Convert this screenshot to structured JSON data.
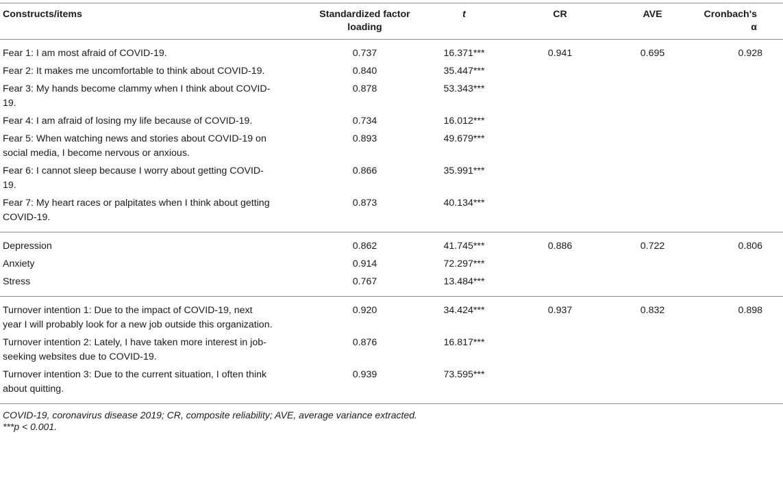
{
  "headers": {
    "constructs": "Constructs/items",
    "loading": "Standardized factor loading",
    "t": "t",
    "cr": "CR",
    "ave": "AVE",
    "alpha": "Cronbach's α"
  },
  "groups": [
    {
      "cr": "0.941",
      "ave": "0.695",
      "alpha": "0.928",
      "rows": [
        {
          "item": "Fear 1: I am most afraid of COVID-19.",
          "loading": "0.737",
          "t": "16.371***"
        },
        {
          "item": "Fear 2: It makes me uncomfortable to think about COVID-19.",
          "loading": "0.840",
          "t": "35.447***"
        },
        {
          "item": "Fear 3: My hands become clammy when I think about COVID-19.",
          "loading": "0.878",
          "t": "53.343***"
        },
        {
          "item": "Fear 4: I am afraid of losing my life because of COVID-19.",
          "loading": "0.734",
          "t": "16.012***"
        },
        {
          "item": "Fear 5: When watching news and stories about COVID-19 on social media, I become nervous or anxious.",
          "loading": "0.893",
          "t": "49.679***"
        },
        {
          "item": "Fear 6: I cannot sleep because I worry about getting COVID-19.",
          "loading": "0.866",
          "t": "35.991***"
        },
        {
          "item": "Fear 7: My heart races or palpitates when I think about getting COVID-19.",
          "loading": "0.873",
          "t": "40.134***"
        }
      ]
    },
    {
      "cr": "0.886",
      "ave": "0.722",
      "alpha": "0.806",
      "rows": [
        {
          "item": "Depression",
          "loading": "0.862",
          "t": "41.745***"
        },
        {
          "item": "Anxiety",
          "loading": "0.914",
          "t": "72.297***"
        },
        {
          "item": "Stress",
          "loading": "0.767",
          "t": "13.484***"
        }
      ]
    },
    {
      "cr": "0.937",
      "ave": "0.832",
      "alpha": "0.898",
      "rows": [
        {
          "item": "Turnover intention 1: Due to the impact of COVID-19, next year I will probably look for a new job outside this organization.",
          "loading": "0.920",
          "t": "34.424***"
        },
        {
          "item": "Turnover intention 2: Lately, I have taken more interest in job-seeking websites due to COVID-19.",
          "loading": "0.876",
          "t": "16.817***"
        },
        {
          "item": "Turnover intention 3: Due to the current situation, I often think about quitting.",
          "loading": "0.939",
          "t": "73.595***"
        }
      ]
    }
  ],
  "notes": {
    "abbreviations": "COVID-19, coronavirus disease 2019; CR, composite reliability; AVE, average variance extracted.",
    "significance": "***p < 0.001."
  }
}
